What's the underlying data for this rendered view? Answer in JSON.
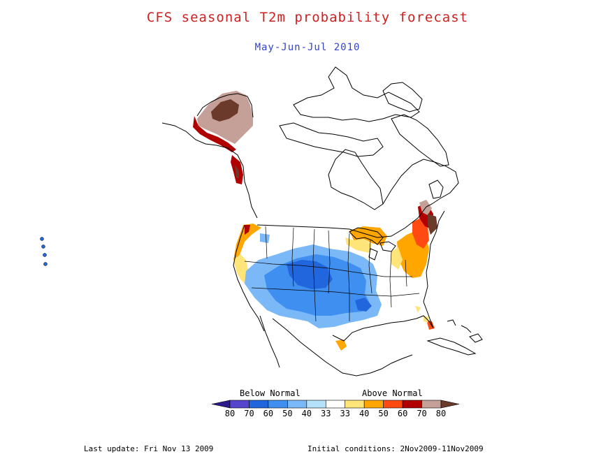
{
  "title": "CFS seasonal T2m probability forecast",
  "subtitle": "May-Jun-Jul 2010",
  "colors": {
    "title": "#cc2222",
    "subtitle": "#3344cc"
  },
  "legend": {
    "below_label": "Below Normal",
    "above_label": "Above Normal",
    "ticks": [
      "80",
      "70",
      "60",
      "50",
      "40",
      "33",
      "33",
      "40",
      "50",
      "60",
      "70",
      "80"
    ],
    "bins": [
      {
        "color": "#2a1a8a"
      },
      {
        "color": "#5544cc"
      },
      {
        "color": "#2266dd"
      },
      {
        "color": "#3f8ff0"
      },
      {
        "color": "#7ab8f8"
      },
      {
        "color": "#b4e2fa"
      },
      {
        "color": "#ffffff"
      },
      {
        "color": "#ffe47a"
      },
      {
        "color": "#ffa600"
      },
      {
        "color": "#ff4a12"
      },
      {
        "color": "#b00000"
      },
      {
        "color": "#c4a098"
      },
      {
        "color": "#6b3a2a"
      }
    ]
  },
  "footer": {
    "last_update": "Last update: Fri Nov 13 2009",
    "initial_conditions": "Initial conditions: 2Nov2009-11Nov2009"
  }
}
